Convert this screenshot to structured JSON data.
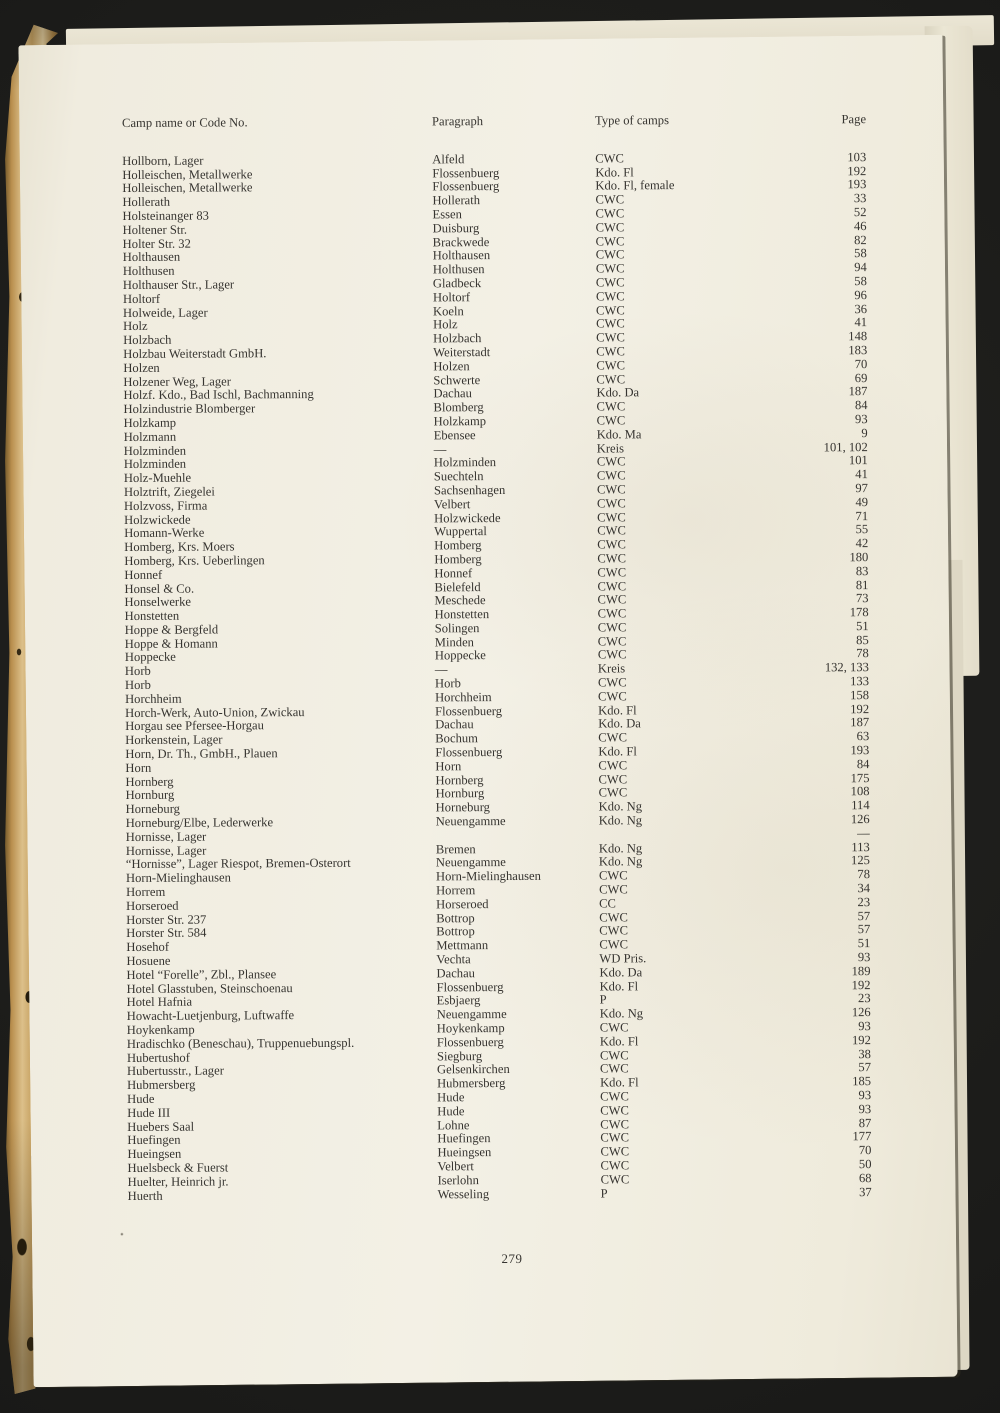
{
  "document": {
    "kind": "scanned book index page",
    "colors": {
      "background": "#1b1b19",
      "paper": "#f1ede0",
      "binding": "#c9a363",
      "ink": "#363430"
    }
  },
  "header": {
    "camp": "Camp name or Code No.",
    "paragraph": "Paragraph",
    "type": "Type of camps",
    "page": "Page"
  },
  "footer": {
    "page_number": "279"
  },
  "table": {
    "rows": [
      {
        "camp": "Hollborn, Lager",
        "paragraph": "Alfeld",
        "type": "CWC",
        "page": "103"
      },
      {
        "camp": "Holleischen, Metallwerke",
        "paragraph": "Flossenbuerg",
        "type": "Kdo. Fl",
        "page": "192"
      },
      {
        "camp": "Holleischen, Metallwerke",
        "paragraph": "Flossenbuerg",
        "type": "Kdo. Fl, female",
        "page": "193"
      },
      {
        "camp": "Hollerath",
        "paragraph": "Hollerath",
        "type": "CWC",
        "page": "33"
      },
      {
        "camp": "Holsteinanger 83",
        "paragraph": "Essen",
        "type": "CWC",
        "page": "52"
      },
      {
        "camp": "Holtener Str.",
        "paragraph": "Duisburg",
        "type": "CWC",
        "page": "46"
      },
      {
        "camp": "Holter Str. 32",
        "paragraph": "Brackwede",
        "type": "CWC",
        "page": "82"
      },
      {
        "camp": "Holthausen",
        "paragraph": "Holthausen",
        "type": "CWC",
        "page": "58"
      },
      {
        "camp": "Holthusen",
        "paragraph": "Holthusen",
        "type": "CWC",
        "page": "94"
      },
      {
        "camp": "Holthauser Str., Lager",
        "paragraph": "Gladbeck",
        "type": "CWC",
        "page": "58"
      },
      {
        "camp": "Holtorf",
        "paragraph": "Holtorf",
        "type": "CWC",
        "page": "96"
      },
      {
        "camp": "Holweide, Lager",
        "paragraph": "Koeln",
        "type": "CWC",
        "page": "36"
      },
      {
        "camp": "Holz",
        "paragraph": "Holz",
        "type": "CWC",
        "page": "41"
      },
      {
        "camp": "Holzbach",
        "paragraph": "Holzbach",
        "type": "CWC",
        "page": "148"
      },
      {
        "camp": "Holzbau Weiterstadt GmbH.",
        "paragraph": "Weiterstadt",
        "type": "CWC",
        "page": "183"
      },
      {
        "camp": "Holzen",
        "paragraph": "Holzen",
        "type": "CWC",
        "page": "70"
      },
      {
        "camp": "Holzener Weg, Lager",
        "paragraph": "Schwerte",
        "type": "CWC",
        "page": "69"
      },
      {
        "camp": "Holzf. Kdo., Bad Ischl, Bachmanning",
        "paragraph": "Dachau",
        "type": "Kdo. Da",
        "page": "187"
      },
      {
        "camp": "Holzindustrie Blomberger",
        "paragraph": "Blomberg",
        "type": "CWC",
        "page": "84"
      },
      {
        "camp": "Holzkamp",
        "paragraph": "Holzkamp",
        "type": "CWC",
        "page": "93"
      },
      {
        "camp": "Holzmann",
        "paragraph": "Ebensee",
        "type": "Kdo. Ma",
        "page": "9"
      },
      {
        "camp": "Holzminden",
        "paragraph": "—",
        "type": "Kreis",
        "page": "101, 102"
      },
      {
        "camp": "Holzminden",
        "paragraph": "Holzminden",
        "type": "CWC",
        "page": "101"
      },
      {
        "camp": "Holz-Muehle",
        "paragraph": "Suechteln",
        "type": "CWC",
        "page": "41"
      },
      {
        "camp": "Holztrift, Ziegelei",
        "paragraph": "Sachsenhagen",
        "type": "CWC",
        "page": "97"
      },
      {
        "camp": "Holzvoss, Firma",
        "paragraph": "Velbert",
        "type": "CWC",
        "page": "49"
      },
      {
        "camp": "Holzwickede",
        "paragraph": "Holzwickede",
        "type": "CWC",
        "page": "71"
      },
      {
        "camp": "Homann-Werke",
        "paragraph": "Wuppertal",
        "type": "CWC",
        "page": "55"
      },
      {
        "camp": "Homberg, Krs. Moers",
        "paragraph": "Homberg",
        "type": "CWC",
        "page": "42"
      },
      {
        "camp": "Homberg, Krs. Ueberlingen",
        "paragraph": "Homberg",
        "type": "CWC",
        "page": "180"
      },
      {
        "camp": "Honnef",
        "paragraph": "Honnef",
        "type": "CWC",
        "page": "83"
      },
      {
        "camp": "Honsel & Co.",
        "paragraph": "Bielefeld",
        "type": "CWC",
        "page": "81"
      },
      {
        "camp": "Honselwerke",
        "paragraph": "Meschede",
        "type": "CWC",
        "page": "73"
      },
      {
        "camp": "Honstetten",
        "paragraph": "Honstetten",
        "type": "CWC",
        "page": "178"
      },
      {
        "camp": "Hoppe & Bergfeld",
        "paragraph": "Solingen",
        "type": "CWC",
        "page": "51"
      },
      {
        "camp": "Hoppe & Homann",
        "paragraph": "Minden",
        "type": "CWC",
        "page": "85"
      },
      {
        "camp": "Hoppecke",
        "paragraph": "Hoppecke",
        "type": "CWC",
        "page": "78"
      },
      {
        "camp": "Horb",
        "paragraph": "—",
        "type": "Kreis",
        "page": "132, 133"
      },
      {
        "camp": "Horb",
        "paragraph": "Horb",
        "type": "CWC",
        "page": "133"
      },
      {
        "camp": "Horchheim",
        "paragraph": "Horchheim",
        "type": "CWC",
        "page": "158"
      },
      {
        "camp": "Horch-Werk, Auto-Union, Zwickau",
        "paragraph": "Flossenbuerg",
        "type": "Kdo. Fl",
        "page": "192"
      },
      {
        "camp": "Horgau see Pfersee-Horgau",
        "paragraph": "Dachau",
        "type": "Kdo. Da",
        "page": "187"
      },
      {
        "camp": "Horkenstein, Lager",
        "paragraph": "Bochum",
        "type": "CWC",
        "page": "63"
      },
      {
        "camp": "Horn, Dr. Th., GmbH., Plauen",
        "paragraph": "Flossenbuerg",
        "type": "Kdo. Fl",
        "page": "193"
      },
      {
        "camp": "Horn",
        "paragraph": "Horn",
        "type": "CWC",
        "page": "84"
      },
      {
        "camp": "Hornberg",
        "paragraph": "Hornberg",
        "type": "CWC",
        "page": "175"
      },
      {
        "camp": "Hornburg",
        "paragraph": "Hornburg",
        "type": "CWC",
        "page": "108"
      },
      {
        "camp": "Horneburg",
        "paragraph": "Horneburg",
        "type": "Kdo. Ng",
        "page": "114"
      },
      {
        "camp": "Horneburg/Elbe, Lederwerke",
        "paragraph": "Neuengamme",
        "type": "Kdo. Ng",
        "page": "126"
      },
      {
        "camp": "Hornisse, Lager",
        "paragraph": "",
        "type": "",
        "page": "—"
      },
      {
        "camp": "Hornisse, Lager",
        "paragraph": "Bremen",
        "type": "Kdo. Ng",
        "page": "113"
      },
      {
        "camp": "“Hornisse”, Lager Riespot, Bremen-Osterort",
        "paragraph": "Neuengamme",
        "type": "Kdo. Ng",
        "page": "125"
      },
      {
        "camp": "Horn-Mielinghausen",
        "paragraph": "Horn-Mielinghausen",
        "type": "CWC",
        "page": "78"
      },
      {
        "camp": "Horrem",
        "paragraph": "Horrem",
        "type": "CWC",
        "page": "34"
      },
      {
        "camp": "Horseroed",
        "paragraph": "Horseroed",
        "type": "CC",
        "page": "23"
      },
      {
        "camp": "Horster Str. 237",
        "paragraph": "Bottrop",
        "type": "CWC",
        "page": "57"
      },
      {
        "camp": "Horster Str. 584",
        "paragraph": "Bottrop",
        "type": "CWC",
        "page": "57"
      },
      {
        "camp": "Hosehof",
        "paragraph": "Mettmann",
        "type": "CWC",
        "page": "51"
      },
      {
        "camp": "Hosuene",
        "paragraph": "Vechta",
        "type": "WD Pris.",
        "page": "93"
      },
      {
        "camp": "Hotel “Forelle”, Zbl., Plansee",
        "paragraph": "Dachau",
        "type": "Kdo. Da",
        "page": "189"
      },
      {
        "camp": "Hotel Glasstuben, Steinschoenau",
        "paragraph": "Flossenbuerg",
        "type": "Kdo. Fl",
        "page": "192"
      },
      {
        "camp": "Hotel Hafnia",
        "paragraph": "Esbjaerg",
        "type": "P",
        "page": "23"
      },
      {
        "camp": "Howacht-Luetjenburg, Luftwaffe",
        "paragraph": "Neuengamme",
        "type": "Kdo. Ng",
        "page": "126"
      },
      {
        "camp": "Hoykenkamp",
        "paragraph": "Hoykenkamp",
        "type": "CWC",
        "page": "93"
      },
      {
        "camp": "Hradischko (Beneschau), Truppenuebungspl.",
        "paragraph": "Flossenbuerg",
        "type": "Kdo. Fl",
        "page": "192"
      },
      {
        "camp": "Hubertushof",
        "paragraph": "Siegburg",
        "type": "CWC",
        "page": "38"
      },
      {
        "camp": "Hubertusstr., Lager",
        "paragraph": "Gelsenkirchen",
        "type": "CWC",
        "page": "57"
      },
      {
        "camp": "Hubmersberg",
        "paragraph": "Hubmersberg",
        "type": "Kdo. Fl",
        "page": "185"
      },
      {
        "camp": "Hude",
        "paragraph": "Hude",
        "type": "CWC",
        "page": "93"
      },
      {
        "camp": "Hude III",
        "paragraph": "Hude",
        "type": "CWC",
        "page": "93"
      },
      {
        "camp": "Huebers Saal",
        "paragraph": "Lohne",
        "type": "CWC",
        "page": "87"
      },
      {
        "camp": "Huefingen",
        "paragraph": "Huefingen",
        "type": "CWC",
        "page": "177"
      },
      {
        "camp": "Hueingsen",
        "paragraph": "Hueingsen",
        "type": "CWC",
        "page": "70"
      },
      {
        "camp": "Huelsbeck & Fuerst",
        "paragraph": "Velbert",
        "type": "CWC",
        "page": "50"
      },
      {
        "camp": "Huelter, Heinrich jr.",
        "paragraph": "Iserlohn",
        "type": "CWC",
        "page": "68"
      },
      {
        "camp": "Huerth",
        "paragraph": "Wesseling",
        "type": "P",
        "page": "37"
      }
    ]
  }
}
